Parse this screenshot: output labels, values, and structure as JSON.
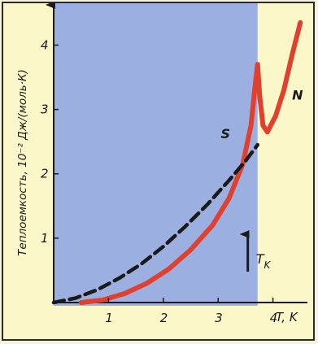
{
  "chart_data": {
    "type": "line",
    "xlabel": "T, K",
    "ylabel": "Теплоемкость, 10⁻² Дж/(моль·К)",
    "xlim": [
      0,
      4.6
    ],
    "ylim": [
      0,
      4.6
    ],
    "x_ticks": [
      "1",
      "2",
      "3",
      "4"
    ],
    "y_ticks": [
      "1",
      "2",
      "3",
      "4"
    ],
    "shaded_region": {
      "from": 0,
      "to": 3.72,
      "label": "S"
    },
    "colors": {
      "superconducting_bg": "#9bb0e0",
      "normal_bg": "#fbf7c8",
      "S_curve": "#e0402e",
      "N_curve": "#1a1a1a"
    },
    "series": [
      {
        "name": "S",
        "style": "solid",
        "color": "#e0402e",
        "x": [
          0.5,
          0.9,
          1.3,
          1.7,
          2.1,
          2.5,
          2.9,
          3.2,
          3.45,
          3.6,
          3.68,
          3.72,
          3.76,
          3.82,
          3.9,
          4.05,
          4.2,
          4.35,
          4.5
        ],
        "y": [
          0.0,
          0.04,
          0.14,
          0.3,
          0.52,
          0.82,
          1.2,
          1.62,
          2.15,
          2.75,
          3.4,
          3.7,
          3.2,
          2.75,
          2.65,
          2.9,
          3.3,
          3.85,
          4.35
        ]
      },
      {
        "name": "N",
        "style": "dashed",
        "color": "#1a1a1a",
        "x": [
          0.0,
          0.4,
          0.8,
          1.2,
          1.6,
          2.0,
          2.4,
          2.8,
          3.2,
          3.5,
          3.72
        ],
        "y": [
          0.0,
          0.07,
          0.2,
          0.38,
          0.6,
          0.87,
          1.18,
          1.52,
          1.9,
          2.2,
          2.45
        ]
      }
    ],
    "annotations": [
      {
        "text": "S",
        "x": 3.05,
        "y": 2.55
      },
      {
        "text": "N",
        "x": 4.35,
        "y": 3.15
      },
      {
        "text": "T",
        "sub": "K",
        "x": 3.72,
        "y": 0.0
      }
    ]
  }
}
